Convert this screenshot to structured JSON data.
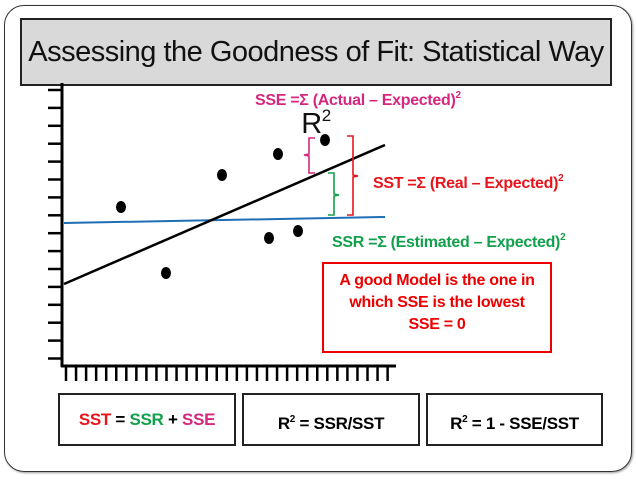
{
  "title": {
    "text": "Assessing the Goodness of Fit: Statistical Way R",
    "sup": "2"
  },
  "labels": {
    "sse": {
      "text": "SSE =Σ (Actual – Expected)",
      "sup": "2",
      "color": "#d6277f"
    },
    "sst": {
      "text": "SST =Σ (Real – Expected)",
      "sup": "2",
      "color": "#e8141b"
    },
    "ssr": {
      "text": "SSR =Σ (Estimated – Expected)",
      "sup": "2",
      "color": "#13a04c"
    }
  },
  "note": {
    "line1": "A good Model is the one in",
    "line2": "which SSE is the lowest",
    "line3": "SSE = 0"
  },
  "formulas": {
    "f1": {
      "sst": "SST",
      "eq": " = ",
      "ssr": "SSR",
      "plus": " + ",
      "sse": "SSE"
    },
    "f2": {
      "r": "R",
      "sup": "2",
      "rest": " = SSR/SST"
    },
    "f3": {
      "r": "R",
      "sup": "2",
      "rest": " = 1 - SSE/SST"
    }
  },
  "colors": {
    "regression_line": "#000000",
    "mean_line": "#1f6fb4"
  }
}
